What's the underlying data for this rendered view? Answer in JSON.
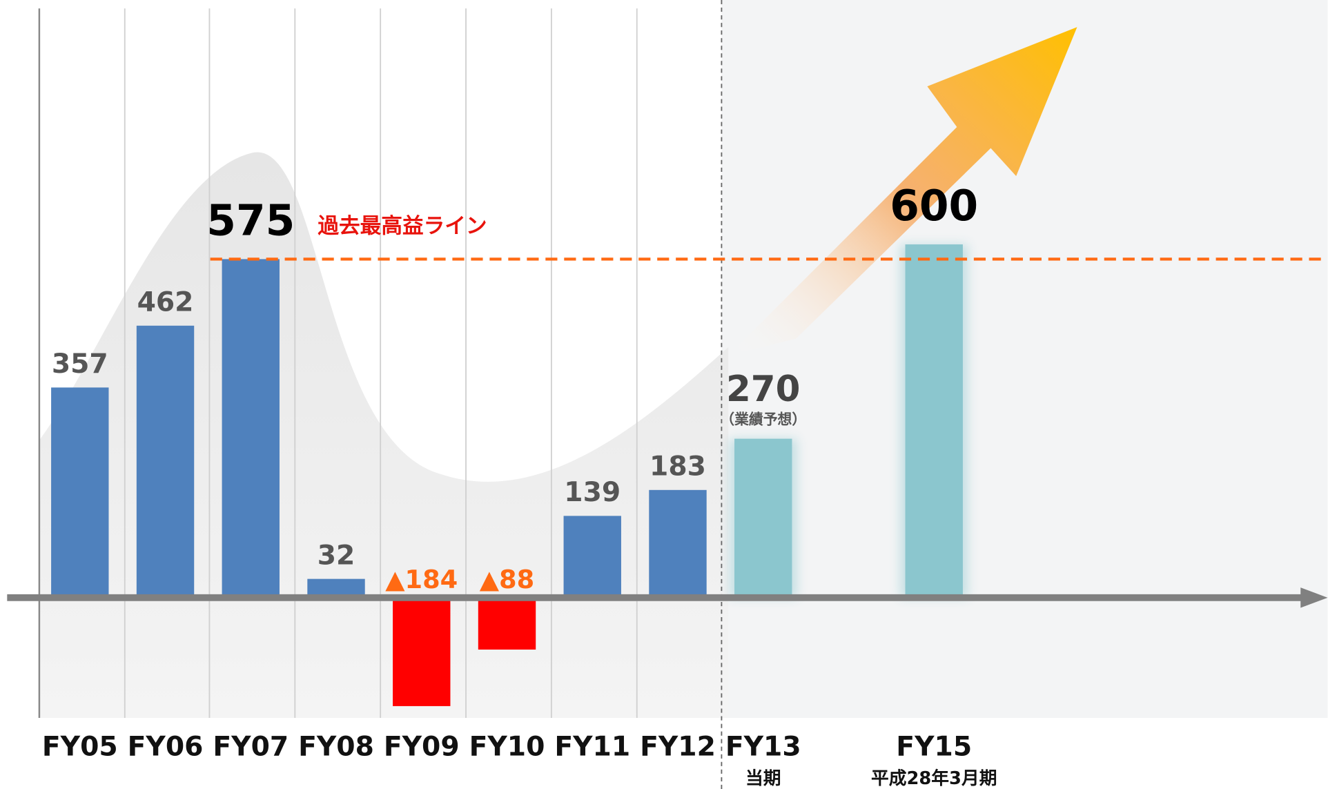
{
  "chart_data": {
    "type": "bar",
    "categories": [
      "FY05",
      "FY06",
      "FY07",
      "FY08",
      "FY09",
      "FY10",
      "FY11",
      "FY12",
      "FY13",
      null,
      "FY15"
    ],
    "sublabels": [
      null,
      null,
      null,
      null,
      null,
      null,
      null,
      null,
      "当期",
      null,
      "平成28年3月期"
    ],
    "values": [
      357,
      462,
      575,
      32,
      -184,
      -88,
      139,
      183,
      270,
      null,
      600
    ],
    "value_labels": [
      null,
      null,
      null,
      null,
      "▲184",
      "▲88",
      null,
      null,
      null,
      null,
      null
    ],
    "annotations": [
      null,
      null,
      null,
      null,
      null,
      null,
      null,
      null,
      "（業績予想）",
      null,
      null
    ],
    "colors": [
      "#4f81bd",
      "#4f81bd",
      "#4f81bd",
      "#4f81bd",
      "#ff0000",
      "#ff0000",
      "#4f81bd",
      "#4f81bd",
      "#8bc6ce",
      null,
      "#8bc6ce"
    ],
    "ylim": [
      -204,
      1015
    ],
    "reference_line": {
      "label": "過去最高益ライン",
      "value": 575,
      "color": "#ff6a13"
    }
  }
}
